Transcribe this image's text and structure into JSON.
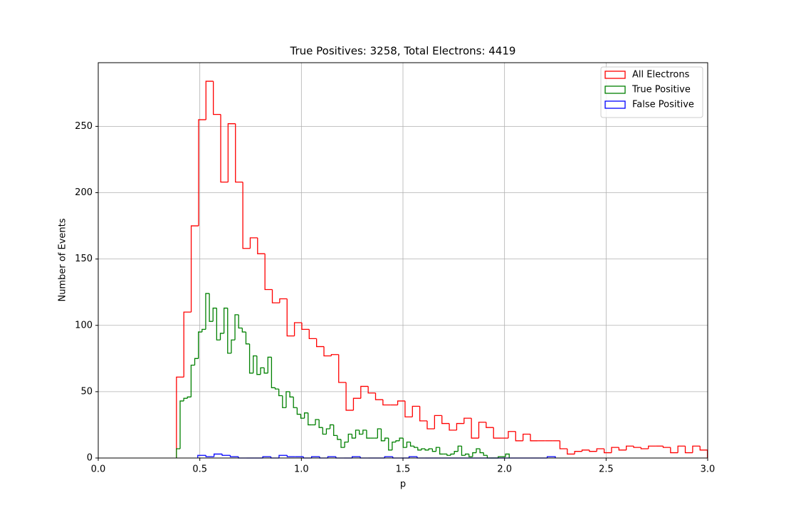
{
  "chart_data": {
    "type": "histogram",
    "title": "True Positives: 3258, Total Electrons: 4419",
    "xlabel": "p",
    "ylabel": "Number of Events",
    "xlim": [
      0,
      3
    ],
    "ylim": [
      0,
      298
    ],
    "xticks": [
      {
        "value": 0,
        "label": "0.0"
      },
      {
        "value": 0.5,
        "label": "0.5"
      },
      {
        "value": 1,
        "label": "1.0"
      },
      {
        "value": 1.5,
        "label": "1.5"
      },
      {
        "value": 2,
        "label": "2.0"
      },
      {
        "value": 2.5,
        "label": "2.5"
      },
      {
        "value": 3,
        "label": "3.0"
      }
    ],
    "yticks": [
      0,
      50,
      100,
      150,
      200,
      250
    ],
    "grid": true,
    "legend": "upper right",
    "series": [
      {
        "name": "All Electrons",
        "color": "#ff0000",
        "bins": [
          0.385,
          0.4213,
          0.4576,
          0.4939,
          0.5302,
          0.5665,
          0.6028,
          0.6391,
          0.6754,
          0.7117,
          0.748,
          0.7843,
          0.8206,
          0.8569,
          0.8932,
          0.9295,
          0.9658,
          1.0021,
          1.0384,
          1.0747,
          1.111,
          1.1473,
          1.1836,
          1.2199,
          1.2562,
          1.2925,
          1.3288,
          1.3651,
          1.4014,
          1.4377,
          1.474,
          1.5103,
          1.5466,
          1.5829,
          1.6192,
          1.6555,
          1.6918,
          1.7281,
          1.7644,
          1.8007,
          1.837,
          1.8733,
          1.9096,
          1.9459,
          1.9822,
          2.0185,
          2.0548,
          2.0911,
          2.1274,
          2.1637,
          2.2,
          2.2363,
          2.2726,
          2.3089,
          2.3452,
          2.3815,
          2.4178,
          2.4541,
          2.4904,
          2.5267,
          2.563,
          2.5993,
          2.6356,
          2.6719,
          2.7082,
          2.7445,
          2.7808,
          2.8171,
          2.8534,
          2.8897,
          2.926,
          2.9623,
          2.9986
        ],
        "values": [
          61,
          110,
          175,
          255,
          284,
          259,
          208,
          252,
          208,
          158,
          166,
          154,
          127,
          117,
          120,
          92,
          102,
          97,
          90,
          84,
          77,
          78,
          57,
          36,
          45,
          54,
          49,
          44,
          40,
          40,
          43,
          31,
          39,
          28,
          22,
          32,
          26,
          21,
          26,
          30,
          15,
          27,
          23,
          15,
          15,
          20,
          13,
          18,
          13,
          13,
          13,
          13,
          7,
          3,
          5,
          6,
          5,
          7,
          4,
          8,
          6,
          9,
          8,
          7,
          9,
          9,
          8,
          4,
          9,
          4,
          9,
          6
        ]
      },
      {
        "name": "True Positive",
        "color": "#008000",
        "bins": [
          0.385,
          0.403,
          0.421,
          0.439,
          0.457,
          0.475,
          0.493,
          0.511,
          0.529,
          0.547,
          0.565,
          0.583,
          0.601,
          0.619,
          0.637,
          0.655,
          0.673,
          0.691,
          0.709,
          0.727,
          0.745,
          0.763,
          0.781,
          0.799,
          0.817,
          0.835,
          0.853,
          0.871,
          0.889,
          0.907,
          0.925,
          0.943,
          0.961,
          0.979,
          0.997,
          1.015,
          1.033,
          1.051,
          1.069,
          1.087,
          1.105,
          1.123,
          1.141,
          1.159,
          1.177,
          1.195,
          1.213,
          1.231,
          1.249,
          1.267,
          1.285,
          1.303,
          1.321,
          1.339,
          1.357,
          1.375,
          1.393,
          1.411,
          1.429,
          1.447,
          1.465,
          1.483,
          1.501,
          1.519,
          1.537,
          1.555,
          1.573,
          1.591,
          1.609,
          1.627,
          1.645,
          1.663,
          1.681,
          1.699,
          1.717,
          1.735,
          1.753,
          1.771,
          1.789,
          1.807,
          1.825,
          1.843,
          1.861,
          1.879,
          1.897,
          1.915,
          1.933,
          1.951,
          1.969,
          1.987,
          2.005,
          2.023
        ],
        "values": [
          7,
          43,
          45,
          46,
          70,
          75,
          95,
          97,
          124,
          103,
          113,
          89,
          94,
          113,
          79,
          89,
          108,
          98,
          95,
          86,
          64,
          77,
          63,
          68,
          64,
          76,
          53,
          52,
          47,
          38,
          50,
          46,
          38,
          33,
          30,
          34,
          25,
          25,
          29,
          23,
          18,
          22,
          25,
          17,
          14,
          8,
          12,
          18,
          15,
          21,
          18,
          21,
          15,
          15,
          15,
          22,
          13,
          15,
          6,
          12,
          13,
          15,
          8,
          12,
          9,
          8,
          6,
          7,
          6,
          7,
          5,
          8,
          3,
          3,
          2,
          3,
          5,
          9,
          2,
          3,
          1,
          4,
          7,
          4,
          2,
          0,
          0,
          0,
          1,
          1,
          3
        ]
      },
      {
        "name": "False Positive",
        "color": "#0000ff",
        "bins": [
          0.49,
          0.53,
          0.57,
          0.61,
          0.65,
          0.69,
          0.73,
          0.77,
          0.81,
          0.85,
          0.89,
          0.93,
          0.97,
          1.01,
          1.05,
          1.09,
          1.13,
          1.17,
          1.21,
          1.25,
          1.29,
          1.33,
          1.37,
          1.41,
          1.45,
          1.49,
          1.53,
          1.57,
          1.61,
          1.65,
          1.69,
          1.73,
          1.77,
          1.81,
          1.85,
          1.89,
          1.93,
          1.97,
          2.01,
          2.05,
          2.09,
          2.13,
          2.17,
          2.21,
          2.25
        ],
        "values": [
          2,
          1,
          3,
          2,
          1,
          0,
          0,
          0,
          1,
          0,
          2,
          1,
          1,
          0,
          1,
          0,
          1,
          0,
          0,
          1,
          0,
          0,
          0,
          1,
          0,
          0,
          1,
          0,
          0,
          0,
          0,
          0,
          0,
          0,
          0,
          0,
          0,
          0,
          0,
          0,
          0,
          0,
          0,
          1
        ]
      }
    ]
  }
}
